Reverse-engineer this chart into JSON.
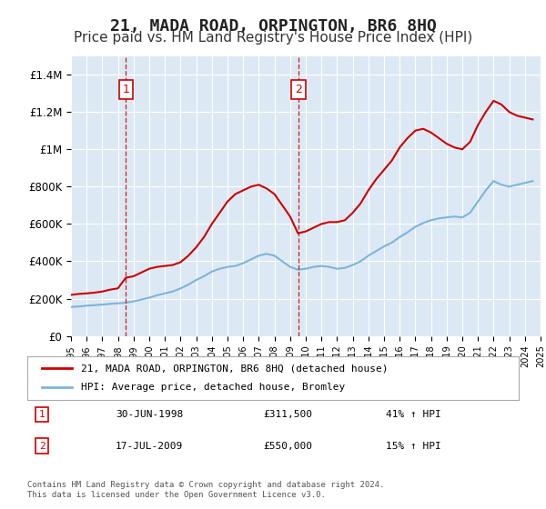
{
  "title": "21, MADA ROAD, ORPINGTON, BR6 8HQ",
  "subtitle": "Price paid vs. HM Land Registry's House Price Index (HPI)",
  "title_fontsize": 13,
  "subtitle_fontsize": 11,
  "background_color": "#ffffff",
  "plot_bg_color": "#dce9f5",
  "grid_color": "#ffffff",
  "ylim": [
    0,
    1500000
  ],
  "yticks": [
    0,
    200000,
    400000,
    600000,
    800000,
    1000000,
    1200000,
    1400000
  ],
  "ytick_labels": [
    "£0",
    "£200K",
    "£400K",
    "£600K",
    "£800K",
    "£1M",
    "£1.2M",
    "£1.4M"
  ],
  "xlabel_fontsize": 8,
  "ylabel_fontsize": 9,
  "line1_color": "#cc0000",
  "line2_color": "#7fb4d8",
  "line1_label": "21, MADA ROAD, ORPINGTON, BR6 8HQ (detached house)",
  "line2_label": "HPI: Average price, detached house, Bromley",
  "transaction1_date": "30-JUN-1998",
  "transaction1_price": 311500,
  "transaction1_hpi": "41% ↑ HPI",
  "transaction1_year": 1998.5,
  "transaction2_date": "17-JUL-2009",
  "transaction2_price": 550000,
  "transaction2_hpi": "15% ↑ HPI",
  "transaction2_year": 2009.54,
  "footer": "Contains HM Land Registry data © Crown copyright and database right 2024.\nThis data is licensed under the Open Government Licence v3.0.",
  "hpi_years": [
    1995,
    1995.5,
    1996,
    1996.5,
    1997,
    1997.5,
    1998,
    1998.5,
    1999,
    1999.5,
    2000,
    2000.5,
    2001,
    2001.5,
    2002,
    2002.5,
    2003,
    2003.5,
    2004,
    2004.5,
    2005,
    2005.5,
    2006,
    2006.5,
    2007,
    2007.5,
    2008,
    2008.5,
    2009,
    2009.5,
    2010,
    2010.5,
    2011,
    2011.5,
    2012,
    2012.5,
    2013,
    2013.5,
    2014,
    2014.5,
    2015,
    2015.5,
    2016,
    2016.5,
    2017,
    2017.5,
    2018,
    2018.5,
    2019,
    2019.5,
    2020,
    2020.5,
    2021,
    2021.5,
    2022,
    2022.5,
    2023,
    2023.5,
    2024,
    2024.5
  ],
  "hpi_values": [
    155000,
    158000,
    162000,
    165000,
    168000,
    172000,
    175000,
    178000,
    185000,
    195000,
    205000,
    218000,
    228000,
    238000,
    255000,
    275000,
    300000,
    320000,
    345000,
    360000,
    370000,
    375000,
    390000,
    410000,
    430000,
    440000,
    430000,
    400000,
    370000,
    355000,
    360000,
    370000,
    375000,
    370000,
    360000,
    365000,
    380000,
    400000,
    430000,
    455000,
    480000,
    500000,
    530000,
    555000,
    585000,
    605000,
    620000,
    630000,
    635000,
    640000,
    635000,
    660000,
    720000,
    780000,
    830000,
    810000,
    800000,
    810000,
    820000,
    830000
  ],
  "price_years": [
    1995,
    1995.5,
    1996,
    1996.5,
    1997,
    1997.5,
    1998,
    1998.5,
    1999,
    1999.5,
    2000,
    2000.5,
    2001,
    2001.5,
    2002,
    2002.5,
    2003,
    2003.5,
    2004,
    2004.5,
    2005,
    2005.5,
    2006,
    2006.5,
    2007,
    2007.5,
    2008,
    2008.5,
    2009,
    2009.5,
    2010,
    2010.5,
    2011,
    2011.5,
    2012,
    2012.5,
    2013,
    2013.5,
    2014,
    2014.5,
    2015,
    2015.5,
    2016,
    2016.5,
    2017,
    2017.5,
    2018,
    2018.5,
    2019,
    2019.5,
    2020,
    2020.5,
    2021,
    2021.5,
    2022,
    2022.5,
    2023,
    2023.5,
    2024,
    2024.5
  ],
  "price_values": [
    220000,
    225000,
    228000,
    232000,
    238000,
    248000,
    255000,
    311500,
    320000,
    340000,
    360000,
    370000,
    375000,
    380000,
    395000,
    430000,
    475000,
    530000,
    600000,
    660000,
    720000,
    760000,
    780000,
    800000,
    810000,
    790000,
    760000,
    700000,
    640000,
    550000,
    560000,
    580000,
    600000,
    610000,
    610000,
    620000,
    660000,
    710000,
    780000,
    840000,
    890000,
    940000,
    1010000,
    1060000,
    1100000,
    1110000,
    1090000,
    1060000,
    1030000,
    1010000,
    1000000,
    1040000,
    1130000,
    1200000,
    1260000,
    1240000,
    1200000,
    1180000,
    1170000,
    1160000
  ]
}
